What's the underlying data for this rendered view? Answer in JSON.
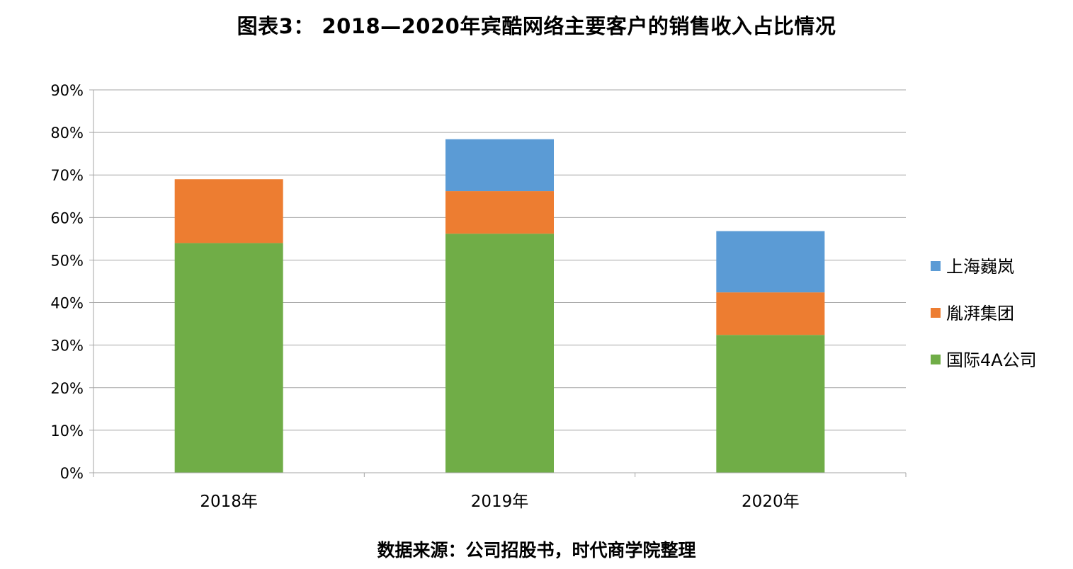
{
  "chart_data": {
    "type": "bar",
    "stacked": true,
    "title": "图表3： 2018—2020年宾酷网络主要客户的销售收入占比情况",
    "categories": [
      "2018年",
      "2019年",
      "2020年"
    ],
    "y_ticks": [
      "0%",
      "10%",
      "20%",
      "30%",
      "40%",
      "50%",
      "60%",
      "70%",
      "80%",
      "90%"
    ],
    "ylim": [
      0,
      90
    ],
    "grid": true,
    "legend_position": "right",
    "series": [
      {
        "name": "国际4A公司",
        "color": "#70ad47",
        "values": [
          54.0,
          56.2,
          32.4
        ]
      },
      {
        "name": "胤湃集团",
        "color": "#ed7d31",
        "values": [
          15.0,
          10.0,
          10.0
        ]
      },
      {
        "name": "上海巍岚",
        "color": "#5b9bd5",
        "values": [
          0.0,
          12.2,
          14.4
        ]
      }
    ],
    "legend_order": [
      "上海巍岚",
      "胤湃集团",
      "国际4A公司"
    ]
  },
  "source_note": "数据来源：公司招股书，时代商学院整理"
}
